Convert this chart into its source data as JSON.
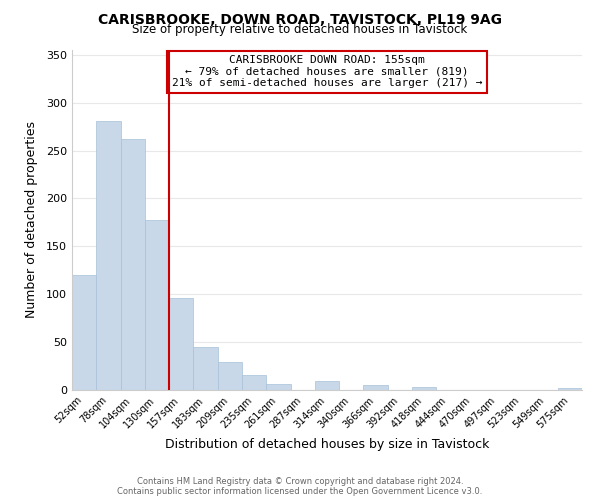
{
  "title": "CARISBROOKE, DOWN ROAD, TAVISTOCK, PL19 9AG",
  "subtitle": "Size of property relative to detached houses in Tavistock",
  "xlabel": "Distribution of detached houses by size in Tavistock",
  "ylabel": "Number of detached properties",
  "bar_labels": [
    "52sqm",
    "78sqm",
    "104sqm",
    "130sqm",
    "157sqm",
    "183sqm",
    "209sqm",
    "235sqm",
    "261sqm",
    "287sqm",
    "314sqm",
    "340sqm",
    "366sqm",
    "392sqm",
    "418sqm",
    "444sqm",
    "470sqm",
    "497sqm",
    "523sqm",
    "549sqm",
    "575sqm"
  ],
  "bar_heights": [
    120,
    281,
    262,
    178,
    96,
    45,
    29,
    16,
    6,
    0,
    9,
    0,
    5,
    0,
    3,
    0,
    0,
    0,
    0,
    0,
    2
  ],
  "bar_color": "#c8d8e8",
  "bar_edge_color": "#a8c0d8",
  "vline_index": 4,
  "vline_color": "#cc0000",
  "annotation_line1": "CARISBROOKE DOWN ROAD: 155sqm",
  "annotation_line2": "← 79% of detached houses are smaller (819)",
  "annotation_line3": "21% of semi-detached houses are larger (217) →",
  "annotation_box_color": "white",
  "annotation_box_edge_color": "#cc0000",
  "ylim": [
    0,
    355
  ],
  "yticks": [
    0,
    50,
    100,
    150,
    200,
    250,
    300,
    350
  ],
  "footer": "Contains HM Land Registry data © Crown copyright and database right 2024.\nContains public sector information licensed under the Open Government Licence v3.0.",
  "background_color": "white",
  "grid_color": "#e8e8e8"
}
